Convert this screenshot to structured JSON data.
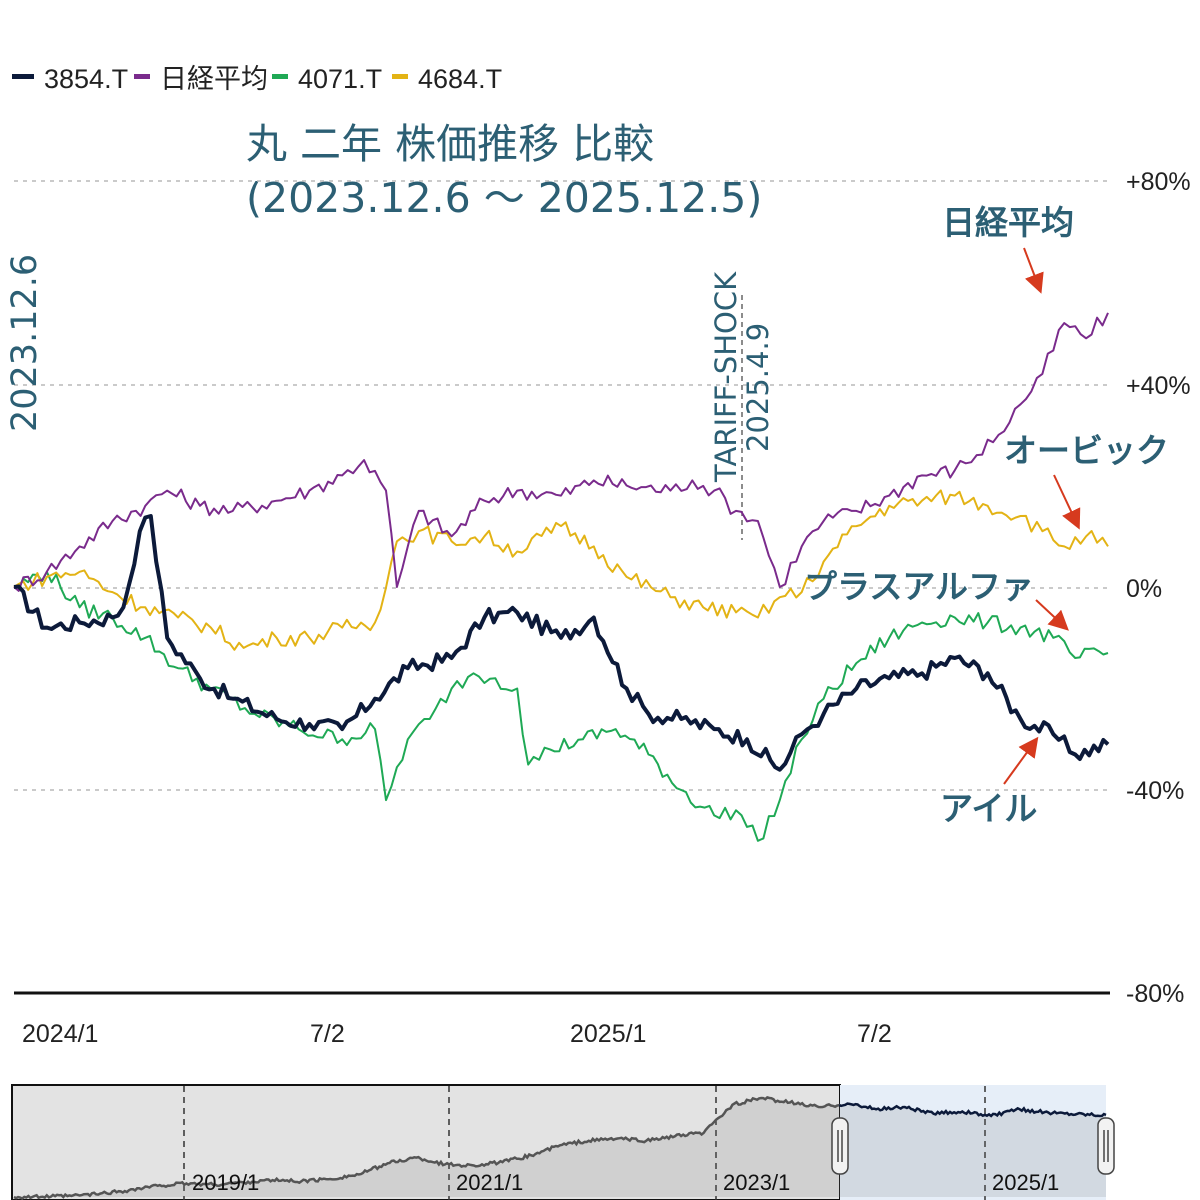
{
  "chart_data": {
    "type": "line",
    "title_line1": "丸 二年 株価推移 比較",
    "title_line2": "(2023.12.6 ～ 2025.12.5)",
    "start_label": "2023.12.6",
    "event": {
      "name": "TARIFF-SHOCK",
      "date": "2025.4.9"
    },
    "y_ticks": [
      "+80%",
      "+40%",
      "0%",
      "-40%",
      "-80%"
    ],
    "ylim": [
      -80,
      80
    ],
    "x_ticks": [
      "2024/1",
      "7/2",
      "2025/1",
      "7/2"
    ],
    "legend": [
      {
        "name": "3854.T",
        "color": "#0c1a3a"
      },
      {
        "name": "日経平均",
        "color": "#7a2b8c"
      },
      {
        "name": "4071.T",
        "color": "#1fa955"
      },
      {
        "name": "4684.T",
        "color": "#e3b315"
      }
    ],
    "series": [
      {
        "name": "3854.T",
        "label": "アイル",
        "color": "#0c1a3a",
        "x": [
          0,
          0.03,
          0.06,
          0.09,
          0.1,
          0.115,
          0.125,
          0.14,
          0.17,
          0.2,
          0.24,
          0.27,
          0.3,
          0.33,
          0.36,
          0.4,
          0.43,
          0.46,
          0.5,
          0.53,
          0.56,
          0.58,
          0.61,
          0.64,
          0.67,
          0.7,
          0.72,
          0.74,
          0.77,
          0.8,
          0.83,
          0.86,
          0.89,
          0.92,
          0.95,
          0.97,
          1.0
        ],
        "values": [
          0,
          -8,
          -7,
          -6,
          -4,
          11,
          14,
          -10,
          -18,
          -22,
          -26,
          -27,
          -28,
          -22,
          -16,
          -14,
          -6,
          -5,
          -10,
          -6,
          -20,
          -25,
          -26,
          -28,
          -30,
          -36,
          -29,
          -25,
          -20,
          -18,
          -17,
          -14,
          -17,
          -26,
          -29,
          -33,
          -31
        ]
      },
      {
        "name": "日経平均",
        "label": "日経平均",
        "color": "#7a2b8c",
        "x": [
          0,
          0.03,
          0.06,
          0.09,
          0.12,
          0.14,
          0.17,
          0.2,
          0.24,
          0.27,
          0.3,
          0.32,
          0.34,
          0.35,
          0.37,
          0.4,
          0.43,
          0.46,
          0.5,
          0.53,
          0.56,
          0.6,
          0.62,
          0.64,
          0.66,
          0.68,
          0.7,
          0.72,
          0.74,
          0.77,
          0.8,
          0.83,
          0.86,
          0.88,
          0.9,
          0.92,
          0.94,
          0.96,
          0.98,
          1.0
        ],
        "values": [
          0,
          3,
          8,
          13,
          16,
          19,
          16,
          15,
          17,
          19,
          22,
          25,
          19,
          0,
          15,
          10,
          17,
          19,
          18,
          21,
          20,
          19,
          21,
          19,
          15,
          13,
          0,
          8,
          13,
          15,
          18,
          22,
          23,
          26,
          30,
          36,
          42,
          52,
          49,
          54
        ]
      },
      {
        "name": "4071.T",
        "label": "プラスアルファ",
        "color": "#1fa955",
        "x": [
          0,
          0.03,
          0.06,
          0.09,
          0.12,
          0.15,
          0.18,
          0.22,
          0.26,
          0.3,
          0.33,
          0.34,
          0.36,
          0.38,
          0.4,
          0.42,
          0.44,
          0.46,
          0.47,
          0.49,
          0.52,
          0.55,
          0.58,
          0.61,
          0.64,
          0.66,
          0.68,
          0.7,
          0.72,
          0.74,
          0.77,
          0.8,
          0.83,
          0.86,
          0.89,
          0.92,
          0.95,
          0.97,
          1.0
        ],
        "values": [
          0,
          3,
          -4,
          -6,
          -10,
          -16,
          -20,
          -25,
          -28,
          -30,
          -28,
          -42,
          -30,
          -26,
          -20,
          -17,
          -18,
          -20,
          -35,
          -32,
          -30,
          -28,
          -33,
          -40,
          -45,
          -44,
          -50,
          -42,
          -30,
          -22,
          -15,
          -10,
          -7,
          -6,
          -7,
          -8,
          -10,
          -14,
          -13
        ]
      },
      {
        "name": "4684.T",
        "label": "オービック",
        "color": "#e3b315",
        "x": [
          0,
          0.03,
          0.06,
          0.09,
          0.12,
          0.15,
          0.18,
          0.21,
          0.24,
          0.27,
          0.3,
          0.33,
          0.35,
          0.37,
          0.4,
          0.43,
          0.46,
          0.5,
          0.53,
          0.56,
          0.6,
          0.63,
          0.66,
          0.68,
          0.7,
          0.72,
          0.74,
          0.77,
          0.8,
          0.83,
          0.86,
          0.89,
          0.92,
          0.94,
          0.96,
          0.98,
          1.0
        ],
        "values": [
          0,
          2,
          3,
          -1,
          -4,
          -6,
          -8,
          -12,
          -10,
          -10,
          -8,
          -7,
          9,
          11,
          9,
          10,
          7,
          12,
          8,
          2,
          -2,
          -4,
          -5,
          -6,
          -2,
          -1,
          5,
          12,
          16,
          17,
          18,
          16,
          14,
          11,
          8,
          10,
          8
        ]
      }
    ],
    "navigator": {
      "ticks": [
        "2019/1",
        "2021/1",
        "2023/1",
        "2025/1"
      ],
      "history_values": [
        0,
        0.2,
        1,
        3,
        6,
        10,
        12,
        11,
        13,
        15,
        14,
        16,
        20,
        30,
        35,
        29,
        28,
        31,
        37,
        46,
        50,
        52,
        50,
        54,
        57,
        82,
        88,
        84,
        80,
        83,
        78,
        80,
        74,
        76,
        72,
        78,
        75,
        74,
        73
      ]
    }
  }
}
